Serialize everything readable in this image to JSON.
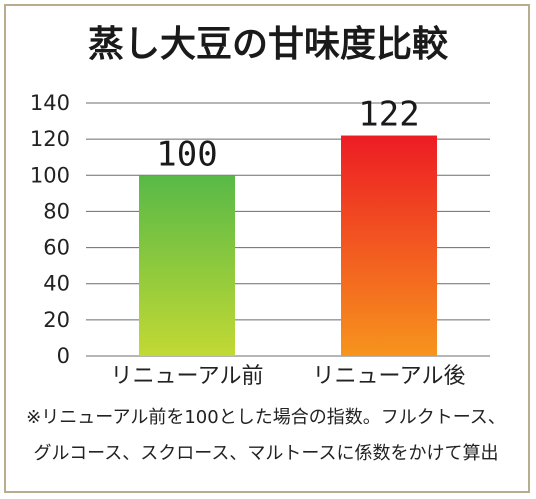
{
  "chart_data": {
    "type": "bar",
    "title": "蒸し大豆の甘味度比較",
    "categories": [
      "リニューアル前",
      "リニューアル後"
    ],
    "values": [
      100,
      122
    ],
    "data_labels": [
      "100",
      "122"
    ],
    "ylim": [
      0,
      140
    ],
    "yticks": [
      0,
      20,
      40,
      60,
      80,
      100,
      120,
      140
    ],
    "ytick_labels": [
      "0",
      "20",
      "40",
      "60",
      "80",
      "100",
      "120",
      "140"
    ],
    "grid": true,
    "bar_gradients": [
      {
        "top": "#58b947",
        "bottom": "#c2d934"
      },
      {
        "top": "#ed1c24",
        "bottom": "#f7941d"
      }
    ],
    "note_lines": [
      "※リニューアル前を100とした場合の指数。フルクトース、",
      "グルコース、スクロース、マルトースに係数をかけて算出"
    ]
  }
}
